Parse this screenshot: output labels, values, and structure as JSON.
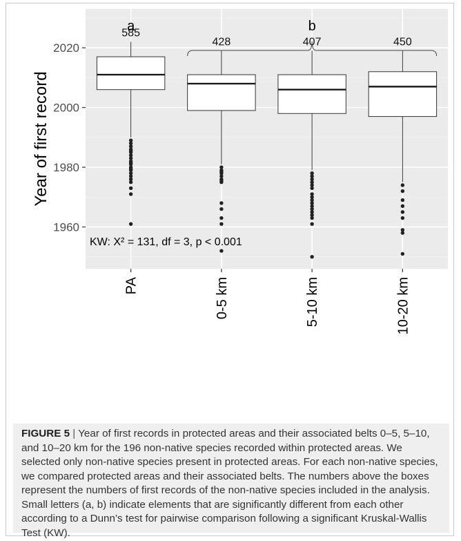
{
  "chart_data": {
    "type": "box",
    "categories": [
      "PA",
      "0-5 km",
      "5-10 km",
      "10-20 km"
    ],
    "ylabel": "Year of first record",
    "yticks": [
      1960,
      1980,
      2000,
      2020
    ],
    "ylim": [
      1946,
      2033
    ],
    "boxes": [
      {
        "category": "PA",
        "n": "585",
        "whisker_low": 1990,
        "q1": 2006,
        "median": 2011,
        "q3": 2017,
        "whisker_high": 2022,
        "outliers": [
          1989,
          1988,
          1987,
          1986,
          1985.5,
          1985,
          1984,
          1983,
          1982,
          1981.5,
          1981,
          1980,
          1979.5,
          1979,
          1978,
          1977,
          1976,
          1975,
          1973,
          1971,
          1961
        ]
      },
      {
        "category": "0-5 km",
        "n": "428",
        "whisker_low": 1981,
        "q1": 1999,
        "median": 2008,
        "q3": 2011,
        "whisker_high": 2019,
        "outliers": [
          1980,
          1979,
          1978.5,
          1978,
          1977,
          1976,
          1975.5,
          1975,
          1968,
          1966,
          1963,
          1961,
          1952
        ]
      },
      {
        "category": "5-10 km",
        "n": "407",
        "whisker_low": 1979,
        "q1": 1998,
        "median": 2006,
        "q3": 2011,
        "whisker_high": 2019,
        "outliers": [
          1978,
          1977,
          1976,
          1975,
          1974,
          1973,
          1971,
          1970,
          1969,
          1968,
          1967,
          1966,
          1965,
          1964,
          1963,
          1961,
          1950
        ]
      },
      {
        "category": "10-20 km",
        "n": "450",
        "whisker_low": 1975,
        "q1": 1997,
        "median": 2007,
        "q3": 2012,
        "whisker_high": 2019,
        "outliers": [
          1974,
          1972,
          1969,
          1967,
          1965,
          1963,
          1959,
          1958,
          1951
        ]
      }
    ],
    "group_letters": [
      {
        "label": "a",
        "covers": [
          "PA"
        ]
      },
      {
        "label": "b",
        "covers": [
          "0-5 km",
          "5-10 km",
          "10-20 km"
        ]
      }
    ],
    "annotation": "KW: X² = 131, df = 3, p < 0.001",
    "grid": true
  },
  "caption": {
    "label": "FIGURE 5",
    "separator": "|",
    "text": "Year of first records in protected areas and their associated belts 0–5, 5–10, and 10–20 km for the 196 non-native species recorded within protected areas. We selected only non-native species present in protected areas. For each non-native species, we compared protected areas and their associated belts. The numbers above the boxes represent the numbers of first records of the non-native species included in the analysis. Small letters (a, b) indicate elements that are significantly different from each other according to a Dunn’s test for pairwise comparison following a significant Kruskal-Wallis Test (KW)."
  },
  "colors": {
    "panel": "#ebebeb",
    "grid_major": "#ffffff",
    "box_fill": "#ffffff",
    "box_stroke": "#333333",
    "median": "#1a1a1a",
    "outlier": "#222222",
    "axis_text": "#4d4d4d",
    "title_text": "#000000"
  }
}
